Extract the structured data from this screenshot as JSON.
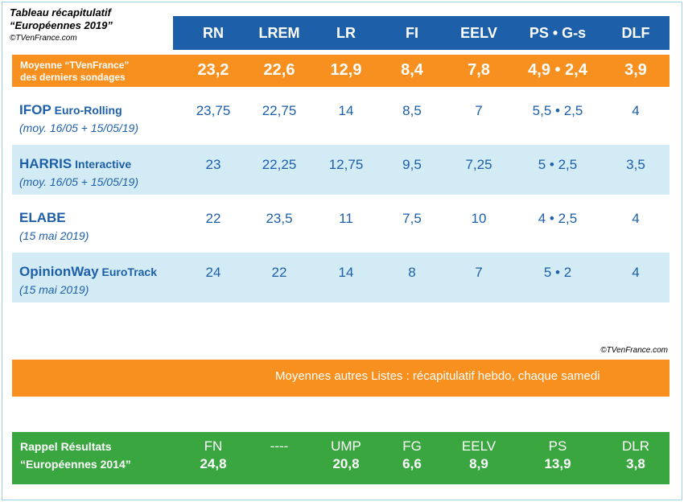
{
  "header": {
    "title": "Tableau récapitulatif",
    "subtitle": "“Européennes 2019”",
    "credit": "©TVenFrance.com"
  },
  "columns": [
    "RN",
    "LREM",
    "LR",
    "FI",
    "EELV",
    "PS • G-s",
    "DLF"
  ],
  "average": {
    "label": [
      "Moyenne “TVenFrance”",
      "des derniers sondages"
    ],
    "values": [
      "23,2",
      "22,6",
      "12,9",
      "8,4",
      "7,8",
      "4,9 • 2,4",
      "3,9"
    ]
  },
  "polls": [
    {
      "name": "IFOP",
      "suffix": "Euro-Rolling",
      "detail": "(moy. 16/05 + 15/05/19)",
      "values": [
        "23,75",
        "22,75",
        "14",
        "8,5",
        "7",
        "5,5 • 2,5",
        "4"
      ]
    },
    {
      "name": "HARRIS",
      "suffix": "Interactive",
      "detail": "(moy. 16/05 + 15/05/19)",
      "values": [
        "23",
        "22,25",
        "12,75",
        "9,5",
        "7,25",
        "5 • 2,5",
        "3,5"
      ]
    },
    {
      "name": "ELABE",
      "detail": "(15 mai 2019)",
      "values": [
        "22",
        "23,5",
        "11",
        "7,5",
        "10",
        "4 • 2,5",
        "4"
      ]
    },
    {
      "name": "OpinionWay",
      "suffix": "EuroTrack",
      "detail": "(15 mai 2019)",
      "values": [
        "24",
        "22",
        "14",
        "8",
        "7",
        "5 • 2",
        "4"
      ]
    }
  ],
  "credit": "©TVenFrance.com",
  "banner": "Moyennes autres Listes : récapitulatif hebdo, chaque samedi",
  "recall": {
    "label": [
      "Rappel Résultats",
      "“Européennes 2014”"
    ],
    "parties": [
      "FN",
      "----",
      "UMP",
      "FG",
      "EELV",
      "PS",
      "DLR"
    ],
    "values": [
      "24,8",
      null,
      "20,8",
      "6,6",
      "8,9",
      "13,9",
      "3,8"
    ]
  }
}
